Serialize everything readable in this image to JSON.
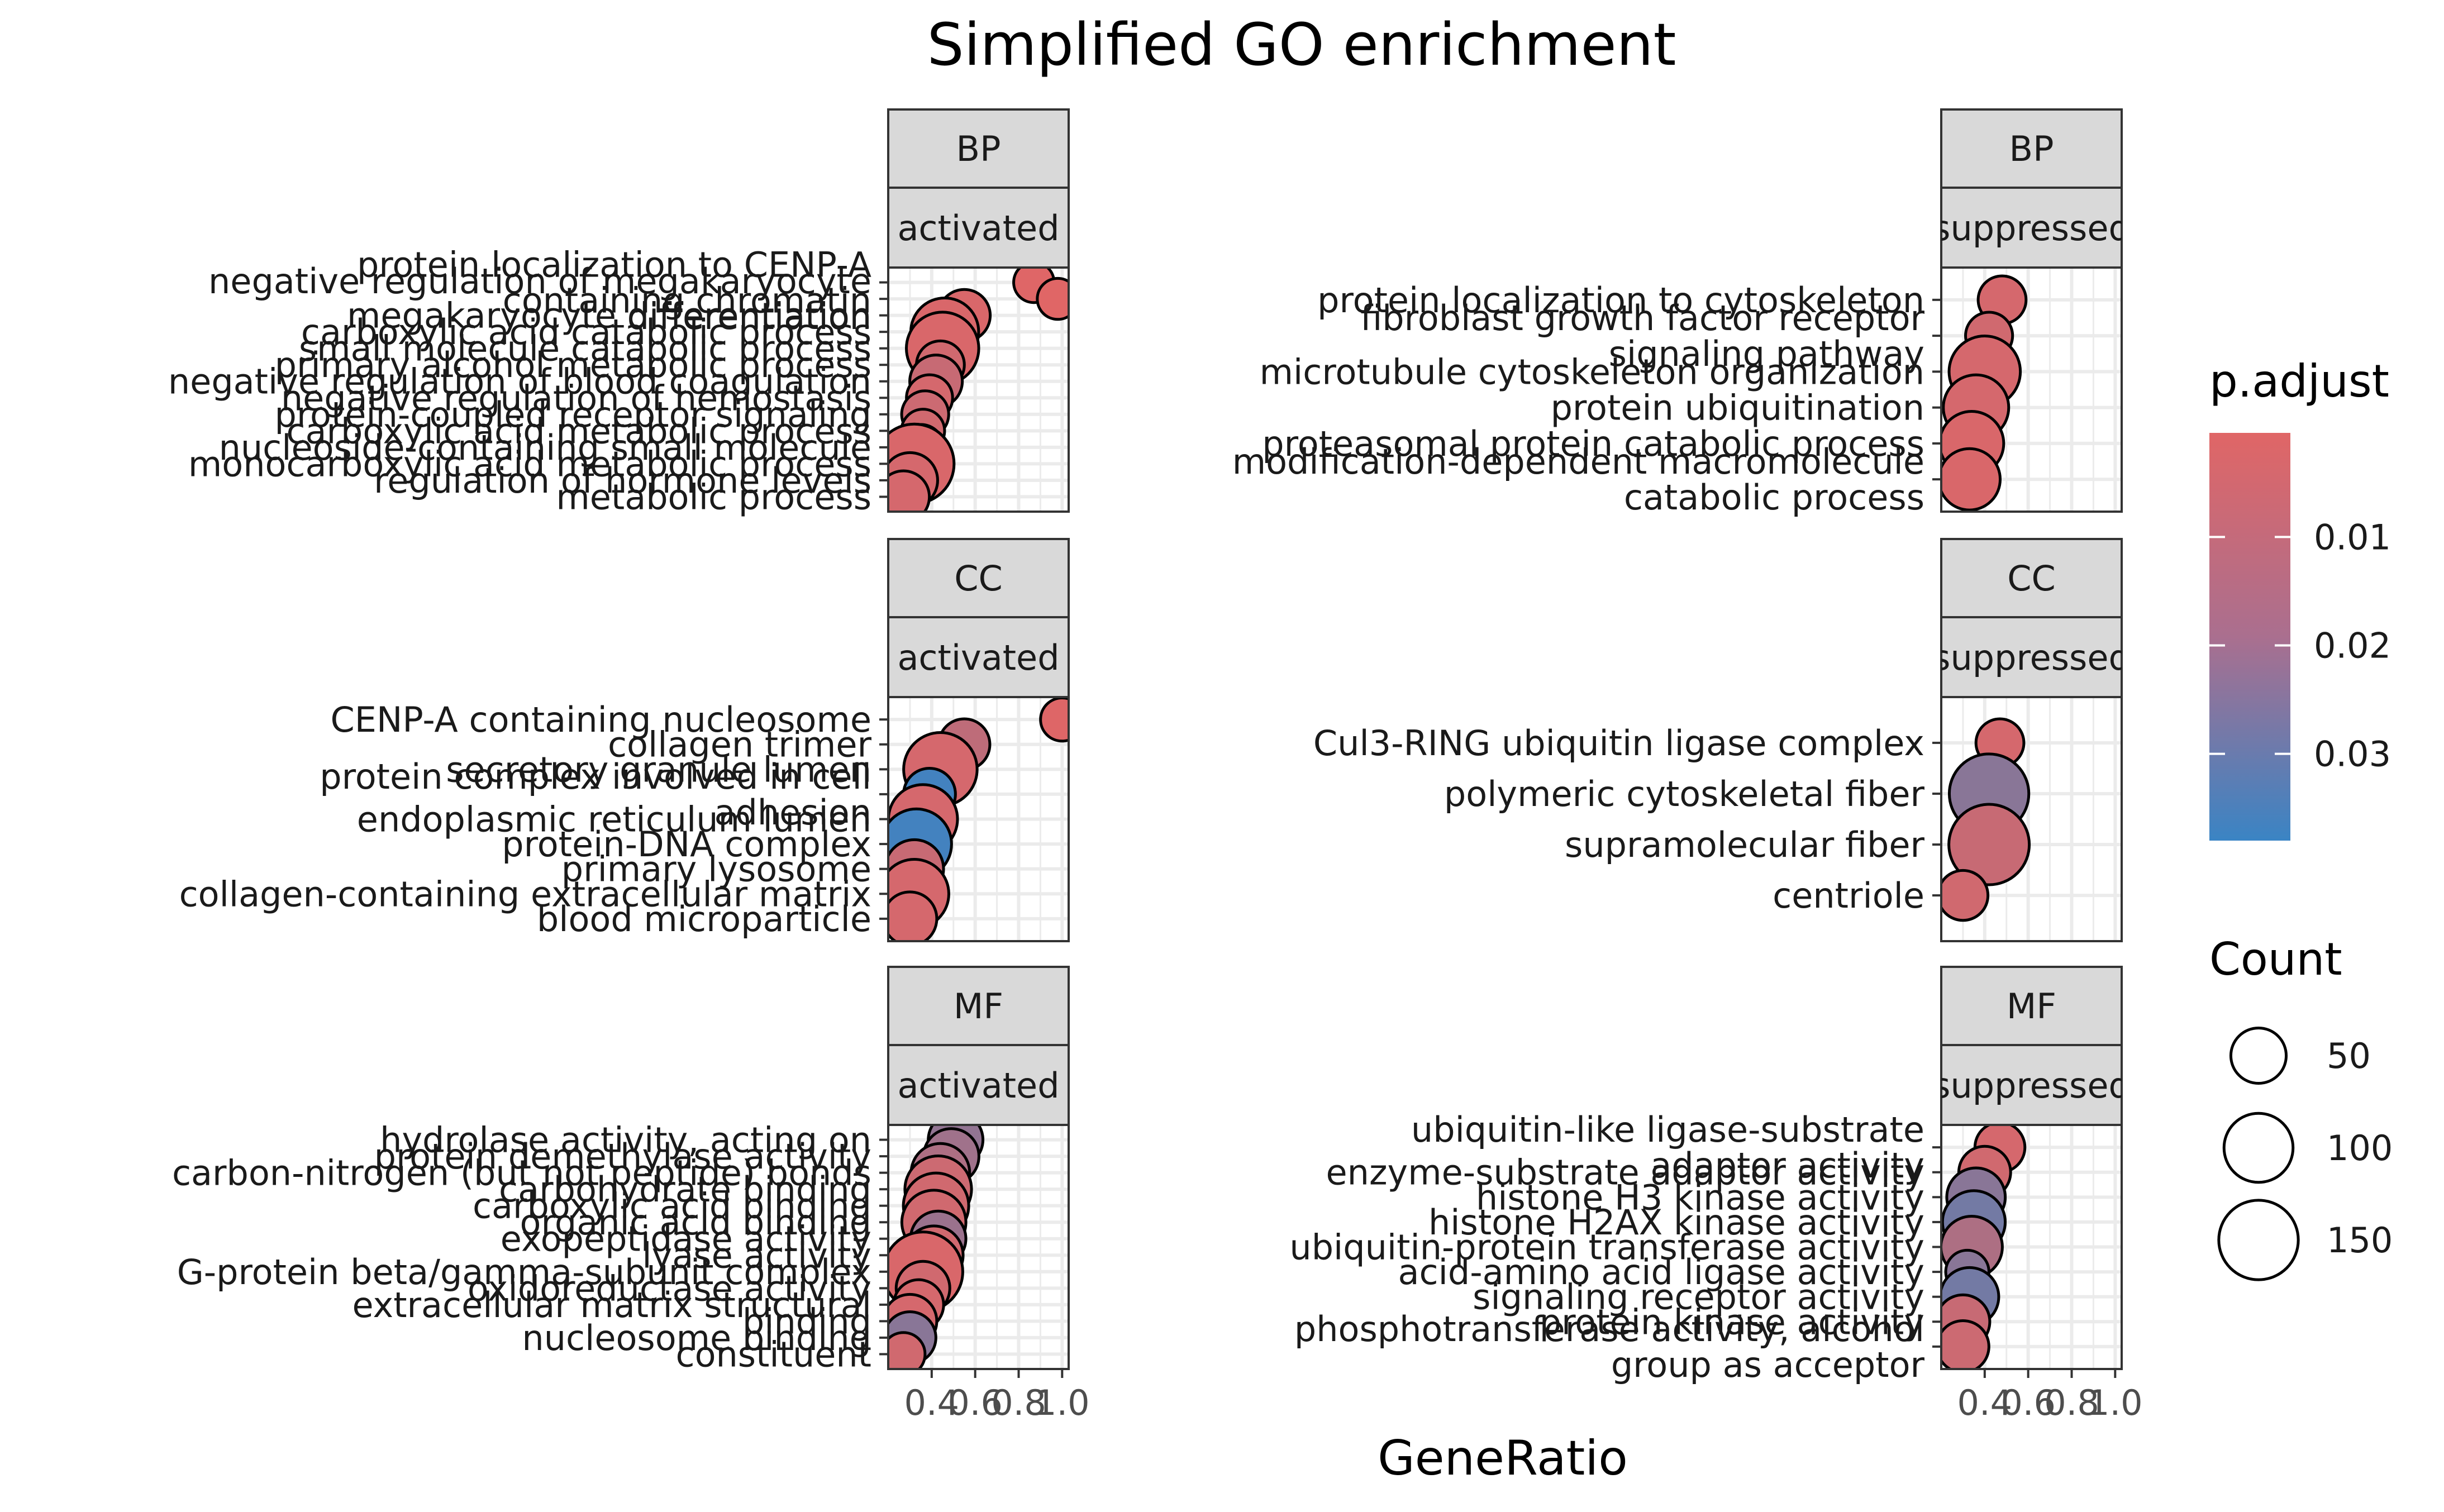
{
  "chart_data": {
    "type": "scatter",
    "title": "Simplified GO enrichment",
    "xlabel": "GeneRatio",
    "ylabel": "",
    "x_ticks": [
      "0.4",
      "0.6",
      "0.8",
      "1.0"
    ],
    "xlim": [
      0.2,
      1.03
    ],
    "grid": true,
    "color_legend": {
      "title": "p.adjust",
      "ticks": [
        "0.01",
        "0.02",
        "0.03"
      ],
      "tick_values": [
        0.01,
        0.02,
        0.03
      ],
      "range": [
        0.0004,
        0.038
      ],
      "low_color": "#e06666",
      "high_color": "#3a84c4"
    },
    "size_legend": {
      "title": "Count",
      "values": [
        50,
        100,
        150
      ],
      "labels": [
        "50",
        "100",
        "150"
      ]
    },
    "panels": [
      {
        "ontology": "BP",
        "group": "activated",
        "col": 0,
        "row": 0,
        "terms": [
          {
            "label": [
              "protein localization to CENP-A",
              "containing chromatin"
            ],
            "x": 0.87,
            "count": 15,
            "p": 0.0006
          },
          {
            "label": [
              "negative regulation of megakaryocyte",
              "differentiation"
            ],
            "x": 0.98,
            "count": 16,
            "p": 0.0005
          },
          {
            "label": [
              "megakaryocyte differentiation"
            ],
            "x": 0.55,
            "count": 40,
            "p": 0.002
          },
          {
            "label": [
              "carboxylic acid catabolic process"
            ],
            "x": 0.46,
            "count": 95,
            "p": 0.002
          },
          {
            "label": [
              "small molecule catabolic process"
            ],
            "x": 0.45,
            "count": 115,
            "p": 0.002
          },
          {
            "label": [
              "primary alcohol metabolic process"
            ],
            "x": 0.44,
            "count": 30,
            "p": 0.004
          },
          {
            "label": [
              "negative regulation of blood coagulation"
            ],
            "x": 0.42,
            "count": 42,
            "p": 0.006
          },
          {
            "label": [
              "negative regulation of hemostasis"
            ],
            "x": 0.39,
            "count": 26,
            "p": 0.003
          },
          {
            "label": [
              "protein-coupled receptor signaling"
            ],
            "x": 0.37,
            "count": 28,
            "p": 0.005
          },
          {
            "label": [
              "carboxylic acid metabolic process"
            ],
            "x": 0.36,
            "count": 20,
            "p": 0.004
          },
          {
            "label": [
              "nucleoside-containing small molecule"
            ],
            "x": 0.35,
            "count": 25,
            "p": 0.003
          },
          {
            "label": [
              "monocarboxylic acid metabolic process"
            ],
            "x": 0.32,
            "count": 150,
            "p": 0.002
          },
          {
            "label": [
              "regulation of hormone levels"
            ],
            "x": 0.3,
            "count": 50,
            "p": 0.003
          },
          {
            "label": [
              "metabolic process"
            ],
            "x": 0.27,
            "count": 40,
            "p": 0.003
          }
        ]
      },
      {
        "ontology": "BP",
        "group": "suppressed",
        "col": 1,
        "row": 0,
        "terms": [
          {
            "label": [
              "protein localization to cytoskeleton"
            ],
            "x": 0.48,
            "count": 30,
            "p": 0.003
          },
          {
            "label": [
              "fibroblast growth factor receptor",
              "signaling pathway"
            ],
            "x": 0.42,
            "count": 28,
            "p": 0.004
          },
          {
            "label": [
              "microtubule cytoskeleton organization"
            ],
            "x": 0.4,
            "count": 110,
            "p": 0.003
          },
          {
            "label": [
              "protein ubiquitination"
            ],
            "x": 0.36,
            "count": 85,
            "p": 0.003
          },
          {
            "label": [
              "proteasomal protein catabolic process"
            ],
            "x": 0.34,
            "count": 80,
            "p": 0.002
          },
          {
            "label": [
              "modification-dependent macromolecule",
              "catabolic process"
            ],
            "x": 0.33,
            "count": 70,
            "p": 0.002
          }
        ]
      },
      {
        "ontology": "CC",
        "group": "activated",
        "col": 0,
        "row": 1,
        "terms": [
          {
            "label": [
              "CENP-A containing nucleosome"
            ],
            "x": 1.0,
            "count": 20,
            "p": 0.0008
          },
          {
            "label": [
              "collagen trimer"
            ],
            "x": 0.55,
            "count": 38,
            "p": 0.008
          },
          {
            "label": [
              "secretory granule lumen"
            ],
            "x": 0.44,
            "count": 120,
            "p": 0.003
          },
          {
            "label": [
              "protein complex involved in cell",
              "adhesion"
            ],
            "x": 0.39,
            "count": 40,
            "p": 0.036
          },
          {
            "label": [
              "endoplasmic reticulum lumen"
            ],
            "x": 0.36,
            "count": 100,
            "p": 0.003
          },
          {
            "label": [
              "protein-DNA complex"
            ],
            "x": 0.33,
            "count": 105,
            "p": 0.036
          },
          {
            "label": [
              "primary lysosome"
            ],
            "x": 0.32,
            "count": 60,
            "p": 0.006
          },
          {
            "label": [
              "collagen-containing extracellular matrix"
            ],
            "x": 0.32,
            "count": 100,
            "p": 0.003
          },
          {
            "label": [
              "blood microparticle"
            ],
            "x": 0.3,
            "count": 45,
            "p": 0.003
          }
        ]
      },
      {
        "ontology": "CC",
        "group": "suppressed",
        "col": 1,
        "row": 1,
        "terms": [
          {
            "label": [
              "Cul3-RING ubiquitin ligase complex"
            ],
            "x": 0.47,
            "count": 30,
            "p": 0.003
          },
          {
            "label": [
              "polymeric cytoskeletal fiber"
            ],
            "x": 0.42,
            "count": 150,
            "p": 0.02
          },
          {
            "label": [
              "supramolecular fiber"
            ],
            "x": 0.42,
            "count": 155,
            "p": 0.006
          },
          {
            "label": [
              "centriole"
            ],
            "x": 0.3,
            "count": 35,
            "p": 0.004
          }
        ]
      },
      {
        "ontology": "MF",
        "group": "activated",
        "col": 0,
        "row": 2,
        "terms": [
          {
            "label": [
              "hydrolase activity, acting on"
            ],
            "x": 0.51,
            "count": 48,
            "p": 0.018
          },
          {
            "label": [
              "protein demethylase activity"
            ],
            "x": 0.49,
            "count": 50,
            "p": 0.015
          },
          {
            "label": [
              "carbon-nitrogen (but not peptide) bonds"
            ],
            "x": 0.44,
            "count": 60,
            "p": 0.012
          },
          {
            "label": [
              "carbohydrate binding"
            ],
            "x": 0.43,
            "count": 90,
            "p": 0.005
          },
          {
            "label": [
              "carboxylic acid binding"
            ],
            "x": 0.42,
            "count": 85,
            "p": 0.004
          },
          {
            "label": [
              "organic acid binding"
            ],
            "x": 0.41,
            "count": 80,
            "p": 0.004
          },
          {
            "label": [
              "exopeptidase activity"
            ],
            "x": 0.43,
            "count": 50,
            "p": 0.016
          },
          {
            "label": [
              "lyase activity"
            ],
            "x": 0.41,
            "count": 60,
            "p": 0.004
          },
          {
            "label": [
              "G-protein beta/gamma-subunit complex"
            ],
            "x": 0.36,
            "count": 150,
            "p": 0.002
          },
          {
            "label": [
              "oxidoreductase activity"
            ],
            "x": 0.36,
            "count": 45,
            "p": 0.004
          },
          {
            "label": [
              "extracellular matrix structural"
            ],
            "x": 0.34,
            "count": 35,
            "p": 0.003
          },
          {
            "label": [
              "binding"
            ],
            "x": 0.3,
            "count": 45,
            "p": 0.003
          },
          {
            "label": [
              "nucleosome binding"
            ],
            "x": 0.3,
            "count": 40,
            "p": 0.02
          },
          {
            "label": [
              "constituent"
            ],
            "x": 0.27,
            "count": 20,
            "p": 0.004
          }
        ]
      },
      {
        "ontology": "MF",
        "group": "suppressed",
        "col": 1,
        "row": 2,
        "terms": [
          {
            "label": [
              "ubiquitin-like ligase-substrate",
              "adaptor activity"
            ],
            "x": 0.47,
            "count": 35,
            "p": 0.003
          },
          {
            "label": [
              "enzyme-substrate adaptor activity"
            ],
            "x": 0.4,
            "count": 40,
            "p": 0.004
          },
          {
            "label": [
              "histone H3 kinase activity"
            ],
            "x": 0.36,
            "count": 60,
            "p": 0.02
          },
          {
            "label": [
              "histone H2AX kinase activity"
            ],
            "x": 0.35,
            "count": 75,
            "p": 0.025
          },
          {
            "label": [
              "ubiquitin-protein transferase activity"
            ],
            "x": 0.34,
            "count": 70,
            "p": 0.012
          },
          {
            "label": [
              "acid-amino acid ligase activity"
            ],
            "x": 0.32,
            "count": 20,
            "p": 0.02
          },
          {
            "label": [
              "signaling receptor activity"
            ],
            "x": 0.33,
            "count": 60,
            "p": 0.025
          },
          {
            "label": [
              "protein kinase activity"
            ],
            "x": 0.3,
            "count": 45,
            "p": 0.006
          },
          {
            "label": [
              "phosphotransferase activity, alcohol",
              "group as acceptor"
            ],
            "x": 0.3,
            "count": 40,
            "p": 0.005
          }
        ]
      }
    ]
  }
}
